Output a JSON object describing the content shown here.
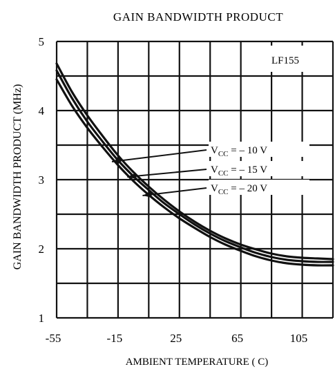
{
  "chart_data": {
    "type": "line",
    "title": "GAIN BANDWIDTH PRODUCT",
    "xlabel": "AMBIENT TEMPERATURE ( C)",
    "ylabel": "GAIN BANDWIDTH PRODUCT  (MHz)",
    "annotation": "LF155",
    "xlim": [
      -55,
      125
    ],
    "ylim": [
      1,
      5
    ],
    "x_ticks": [
      -55,
      -15,
      25,
      65,
      105
    ],
    "x_tick_labels": [
      "-55",
      "-15",
      "25",
      "65",
      "105"
    ],
    "y_ticks": [
      1,
      2,
      3,
      4,
      5
    ],
    "y_tick_labels": [
      "1",
      "2",
      "3",
      "4",
      "5"
    ],
    "grid": true,
    "series": [
      {
        "name": "VCC = – 10 V",
        "label_main": "V",
        "label_sub": "CC",
        "label_rest": " = – 10 V",
        "x": [
          -55,
          -45,
          -35,
          -25,
          -15,
          -5,
          5,
          15,
          25,
          35,
          45,
          55,
          65,
          75,
          85,
          95,
          105,
          115,
          125
        ],
        "y": [
          4.68,
          4.27,
          3.93,
          3.63,
          3.35,
          3.11,
          2.9,
          2.71,
          2.54,
          2.39,
          2.26,
          2.15,
          2.06,
          1.99,
          1.93,
          1.89,
          1.87,
          1.86,
          1.85
        ]
      },
      {
        "name": "VCC = – 15 V",
        "label_main": "V",
        "label_sub": "CC",
        "label_rest": " = – 15 V",
        "x": [
          -55,
          -45,
          -35,
          -25,
          -15,
          -5,
          5,
          15,
          25,
          35,
          45,
          55,
          65,
          75,
          85,
          95,
          105,
          115,
          125
        ],
        "y": [
          4.58,
          4.18,
          3.84,
          3.55,
          3.28,
          3.05,
          2.85,
          2.66,
          2.5,
          2.35,
          2.22,
          2.11,
          2.02,
          1.94,
          1.88,
          1.84,
          1.82,
          1.81,
          1.81
        ]
      },
      {
        "name": "VCC = – 20 V",
        "label_main": "V",
        "label_sub": "CC",
        "label_rest": " = – 20 V",
        "x": [
          -55,
          -45,
          -35,
          -25,
          -15,
          -5,
          5,
          15,
          25,
          35,
          45,
          55,
          65,
          75,
          85,
          95,
          105,
          115,
          125
        ],
        "y": [
          4.45,
          4.07,
          3.75,
          3.47,
          3.21,
          2.98,
          2.78,
          2.6,
          2.44,
          2.3,
          2.17,
          2.06,
          1.97,
          1.89,
          1.83,
          1.79,
          1.77,
          1.76,
          1.76
        ]
      }
    ],
    "label_anchor_points": [
      {
        "series": "VCC = – 10 V",
        "x": -19,
        "y": 3.26
      },
      {
        "series": "VCC = – 15 V",
        "x": -9,
        "y": 3.04
      },
      {
        "series": "VCC = – 20 V",
        "x": 1,
        "y": 2.77
      }
    ],
    "legend": "inline labels with arrows, right-center"
  }
}
